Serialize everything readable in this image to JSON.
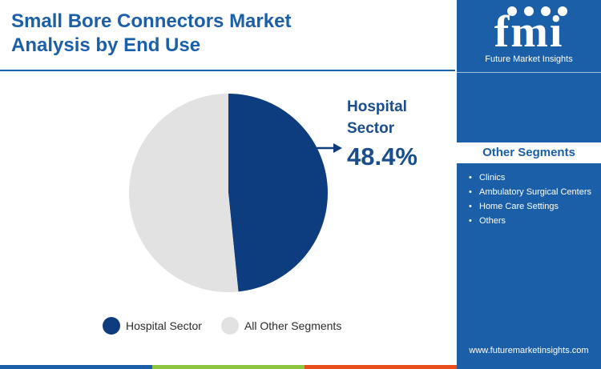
{
  "title": "Small Bore Connectors Market Analysis by End Use",
  "chart_data": {
    "type": "pie",
    "slices": [
      {
        "label": "Hospital Sector",
        "value": 48.4,
        "color": "#0d3d7e"
      },
      {
        "label": "All Other Segments",
        "value": 51.6,
        "color": "#e2e2e2"
      }
    ],
    "callout": {
      "label": "Hospital Sector",
      "value": "48.4%"
    },
    "legend": [
      "Hospital Sector",
      "All Other Segments"
    ],
    "legend_position": "bottom"
  },
  "sidebar": {
    "logo_text": "fmi",
    "logo_tagline": "Future Market Insights",
    "segments_title": "Other Segments",
    "segments": [
      "Clinics",
      "Ambulatory Surgical Centers",
      "Home Care Settings",
      "Others"
    ],
    "website": "www.futuremarketinsights.com"
  },
  "colors": {
    "accent": "#1a5fa8",
    "bottom_bar": [
      "#1a5fa8",
      "#8cc63f",
      "#e84e1b",
      "#1a5fa8"
    ]
  }
}
